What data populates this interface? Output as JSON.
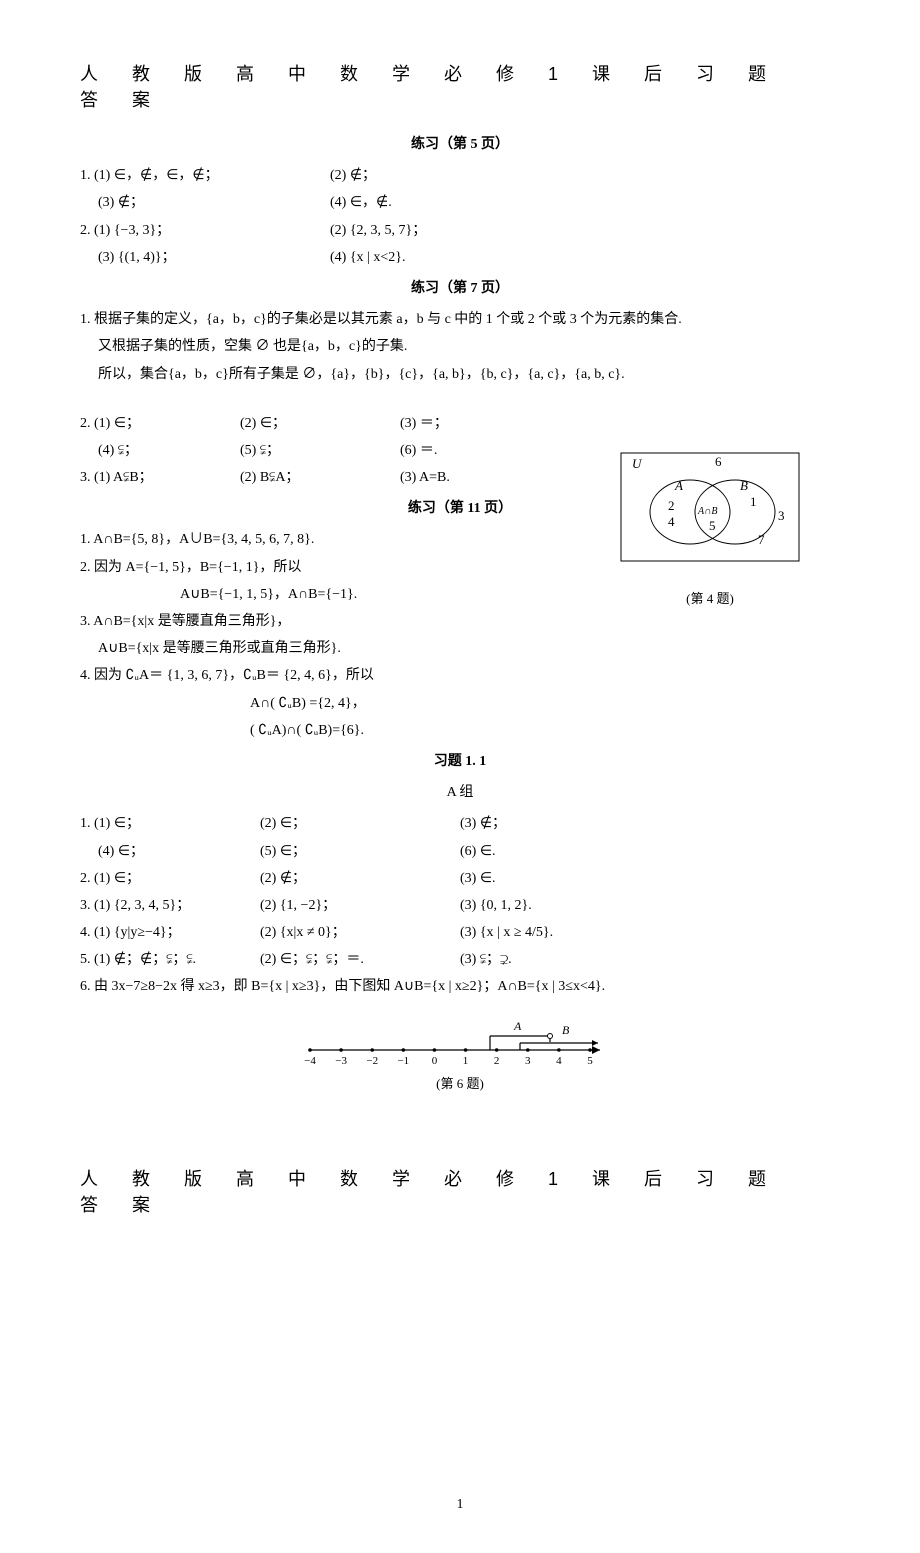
{
  "title": "人教版高中数学必修1课后习题答案",
  "sections": {
    "p5": {
      "header": "练习（第 5 页）"
    },
    "p7": {
      "header": "练习（第 7 页）"
    },
    "p11": {
      "header": "练习（第 11 页）"
    },
    "ex11": {
      "header": "习题 1. 1",
      "subheader": "A 组"
    }
  },
  "p5": {
    "l1a": "1. (1) ∈，∉，∈，∉；",
    "l1b": "(2) ∉；",
    "l1c": "(3) ∉；",
    "l1d": "(4) ∈，∉.",
    "l2a": "2. (1) {−3, 3}；",
    "l2b": "(2) {2, 3, 5, 7}；",
    "l2c": "(3) {(1, 4)}；",
    "l2d": "(4) {x | x<2}."
  },
  "p7": {
    "q1a": "1. 根据子集的定义，{a，b，c}的子集必是以其元素 a，b 与 c 中的 1 个或 2 个或 3 个为元素的集合.",
    "q1b": "又根据子集的性质，空集 ∅ 也是{a，b，c}的子集.",
    "q1c": "所以，集合{a，b，c}所有子集是 ∅，{a}，{b}，{c}，{a, b}，{b, c}，{a, c}，{a, b, c}.",
    "q2_1": "2. (1) ∈；",
    "q2_2": "(2) ∈；",
    "q2_3": "(3) ＝；",
    "q2_4": "(4) ⫋；",
    "q2_5": "(5) ⫋；",
    "q2_6": "(6) ＝.",
    "q3_1": "3. (1) A⫋B；",
    "q3_2": "(2) B⫋A；",
    "q3_3": "(3) A=B."
  },
  "p11": {
    "l1": "1. A∩B={5, 8}，A∪B={3, 4, 5, 6, 7, 8}.",
    "l2a": "2. 因为 A={−1, 5}，B={−1, 1}，所以",
    "l2b": "A∪B={−1, 1, 5}，A∩B={−1}.",
    "l3a": "3. A∩B={x|x 是等腰直角三角形}，",
    "l3b": "A∪B={x|x 是等腰三角形或直角三角形}.",
    "l4a": "4. 因为 ∁ᵤA＝ {1, 3, 6, 7}，∁ᵤB＝ {2, 4, 6}，所以",
    "l4b": "A∩( ∁ᵤB) ={2, 4}，",
    "l4c": "( ∁ᵤA)∩( ∁ᵤB)={6}.",
    "venn_caption": "(第 4 题)",
    "venn": {
      "U": "U",
      "A": "A",
      "B": "B",
      "AintB": "A∩B",
      "n1": "1",
      "n2": "2",
      "n3": "3",
      "n4": "4",
      "n5": "5",
      "n6": "6",
      "n7": "7"
    }
  },
  "a": {
    "r1_1": "1. (1) ∈；",
    "r1_2": "(2) ∈；",
    "r1_3": "(3) ∉；",
    "r1_4": "(4) ∈；",
    "r1_5": "(5) ∈；",
    "r1_6": "(6) ∈.",
    "r2_1": "2. (1) ∈；",
    "r2_2": "(2) ∉；",
    "r2_3": "(3) ∈.",
    "r3_1": "3. (1) {2, 3, 4, 5}；",
    "r3_2": "(2) {1, −2}；",
    "r3_3": "(3) {0, 1, 2}.",
    "r4_1": "4. (1) {y|y≥−4}；",
    "r4_2": "(2) {x|x ≠ 0}；",
    "r4_3": "(3) {x | x ≥ 4/5}.",
    "r5_1": "5. (1) ∉；∉；⫋；⫋.",
    "r5_2": "(2) ∈；⫋；⫋；＝.",
    "r5_3": "(3) ⫋；⊋.",
    "r6": "6. 由 3x−7≥8−2x 得 x≥3，即 B={x | x≥3}，由下图知 A∪B={x | x≥2}；A∩B={x | 3≤x<4}.",
    "nl_caption": "(第 6 题)",
    "nl": {
      "ticks": [
        "−4",
        "−3",
        "−2",
        "−1",
        "0",
        "1",
        "2",
        "3",
        "4",
        "5"
      ],
      "A": "A",
      "B": "B"
    }
  },
  "page_number": "1",
  "colors": {
    "text": "#000000",
    "bg": "#ffffff",
    "line": "#000000"
  }
}
